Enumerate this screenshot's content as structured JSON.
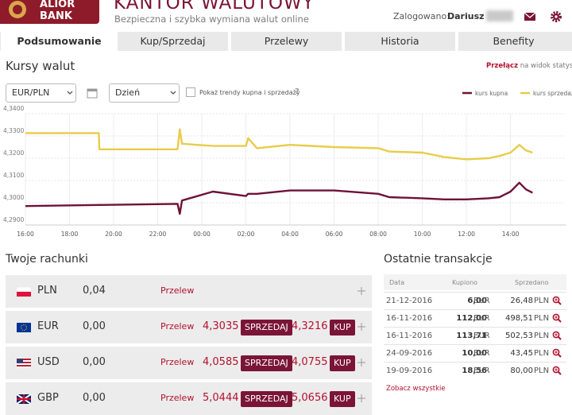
{
  "header": {
    "logo_line1": "ALIOR",
    "logo_line2": "BANK",
    "title": "KANTOR WALUTOWY",
    "subtitle": "Bezpieczna i szybka wymiana walut online",
    "user_label": "Zalogowano:",
    "user_name": "Dariusz"
  },
  "tabs": [
    "Podsumowanie",
    "Kup/Sprzedaj",
    "Przelewy",
    "Historia",
    "Benefity"
  ],
  "rates": {
    "title": "Kursy walut",
    "switch_link": "Przełącz",
    "switch_text": "na widok statystyk",
    "pair_select": "EUR/PLN",
    "period_select": "Dzień",
    "checkbox_label": "Pokaż trendy kupna i sprzedaży",
    "help": "?"
  },
  "chart_data": {
    "type": "line",
    "x": [
      16,
      19.33,
      19.35,
      22.9,
      23,
      23.1,
      24.5,
      26,
      26.1,
      26.5,
      28,
      30,
      32,
      32.5,
      34,
      35,
      36,
      37,
      37.5,
      38,
      38.4,
      38.7,
      39
    ],
    "series": [
      {
        "name": "kurs kupna",
        "color": "#6e1237",
        "values": [
          4.2985,
          4.299,
          4.299,
          4.2995,
          4.295,
          4.301,
          4.305,
          4.303,
          4.304,
          4.304,
          4.3055,
          4.3055,
          4.304,
          4.3025,
          4.302,
          4.3015,
          4.3015,
          4.302,
          4.3025,
          4.305,
          4.309,
          4.306,
          4.3045
        ]
      },
      {
        "name": "kurs sprzedaży",
        "color": "#e8cc4a",
        "values": [
          4.3313,
          4.3313,
          4.324,
          4.324,
          4.333,
          4.3265,
          4.3255,
          4.3255,
          4.329,
          4.3245,
          4.326,
          4.325,
          4.3245,
          4.323,
          4.3225,
          4.3205,
          4.3195,
          4.32,
          4.321,
          4.3225,
          4.326,
          4.3235,
          4.3225
        ]
      }
    ],
    "xlim": [
      16,
      40.5
    ],
    "xticks": [
      {
        "value": 16,
        "label": "16:00"
      },
      {
        "value": 18,
        "label": "18:00"
      },
      {
        "value": 20,
        "label": "20:00"
      },
      {
        "value": 22,
        "label": "22:00"
      },
      {
        "value": 24,
        "label": "00:00"
      },
      {
        "value": 26,
        "label": "02:00"
      },
      {
        "value": 28,
        "label": "04:00"
      },
      {
        "value": 30,
        "label": "06:00"
      },
      {
        "value": 32,
        "label": "08:00"
      },
      {
        "value": 34,
        "label": "10:00"
      },
      {
        "value": 36,
        "label": "12:00"
      },
      {
        "value": 38,
        "label": "14:00"
      }
    ],
    "ylim": [
      4.29,
      4.34
    ],
    "yticks": [
      {
        "value": 4.29,
        "label": "4,2900"
      },
      {
        "value": 4.3,
        "label": "4,3000"
      },
      {
        "value": 4.31,
        "label": "4,3100"
      },
      {
        "value": 4.32,
        "label": "4,3200"
      },
      {
        "value": 4.33,
        "label": "4,3300"
      },
      {
        "value": 4.34,
        "label": "4,3400"
      }
    ],
    "grid": true
  },
  "accounts": {
    "title": "Twoje rachunki",
    "rows": [
      {
        "currency": "PLN",
        "balance": "0,04",
        "transfer": "Przelew"
      },
      {
        "currency": "EUR",
        "balance": "0,00",
        "transfer": "Przelew",
        "buy_rate": "4,3035",
        "sell_button": "SPRZEDAJ",
        "sell_rate": "4,3216",
        "buy_button": "KUP"
      },
      {
        "currency": "USD",
        "balance": "0,00",
        "transfer": "Przelew",
        "buy_rate": "4,0585",
        "sell_button": "SPRZEDAJ",
        "sell_rate": "4,0755",
        "buy_button": "KUP"
      },
      {
        "currency": "GBP",
        "balance": "0,00",
        "transfer": "Przelew",
        "buy_rate": "5,0444",
        "sell_button": "SPRZEDAJ",
        "sell_rate": "5,0656",
        "buy_button": "KUP"
      }
    ]
  },
  "transactions": {
    "title": "Ostatnie transakcje",
    "columns": [
      "Data",
      "Kupiono",
      "Sprzedano"
    ],
    "rows": [
      [
        "21-12-2016",
        "6,00",
        "EUR",
        "26,48",
        "PLN"
      ],
      [
        "16-11-2016",
        "112,00",
        "EUR",
        "498,51",
        "PLN"
      ],
      [
        "16-11-2016",
        "113,71",
        "EUR",
        "502,53",
        "PLN"
      ],
      [
        "24-09-2016",
        "10,00",
        "EUR",
        "43,45",
        "PLN"
      ],
      [
        "19-09-2016",
        "18,56",
        "EUR",
        "80,00",
        "PLN"
      ]
    ],
    "view_all": "Zobacz wszystkie"
  }
}
